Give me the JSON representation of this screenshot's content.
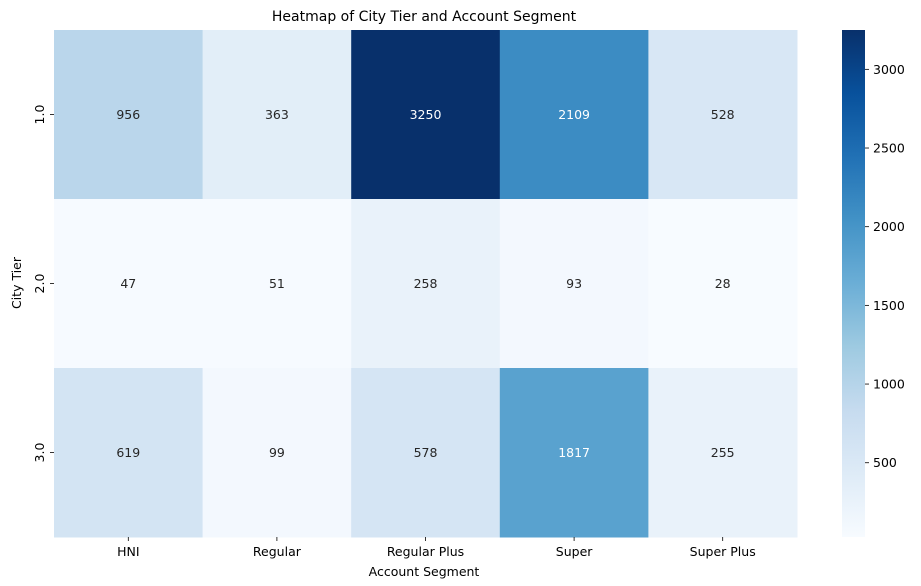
{
  "chart_data": {
    "type": "heatmap",
    "title": "Heatmap of City Tier and Account Segment",
    "xlabel": "Account Segment",
    "ylabel": "City Tier",
    "x_categories": [
      "HNI",
      "Regular",
      "Regular Plus",
      "Super",
      "Super Plus"
    ],
    "y_categories": [
      "1.0",
      "2.0",
      "3.0"
    ],
    "values": [
      [
        956,
        363,
        3250,
        2109,
        528
      ],
      [
        47,
        51,
        258,
        93,
        28
      ],
      [
        619,
        99,
        578,
        1817,
        255
      ]
    ],
    "colormap": "Blues",
    "vmin": 28,
    "vmax": 3250,
    "colorbar_ticks": [
      500,
      1000,
      1500,
      2000,
      2500,
      3000
    ]
  }
}
